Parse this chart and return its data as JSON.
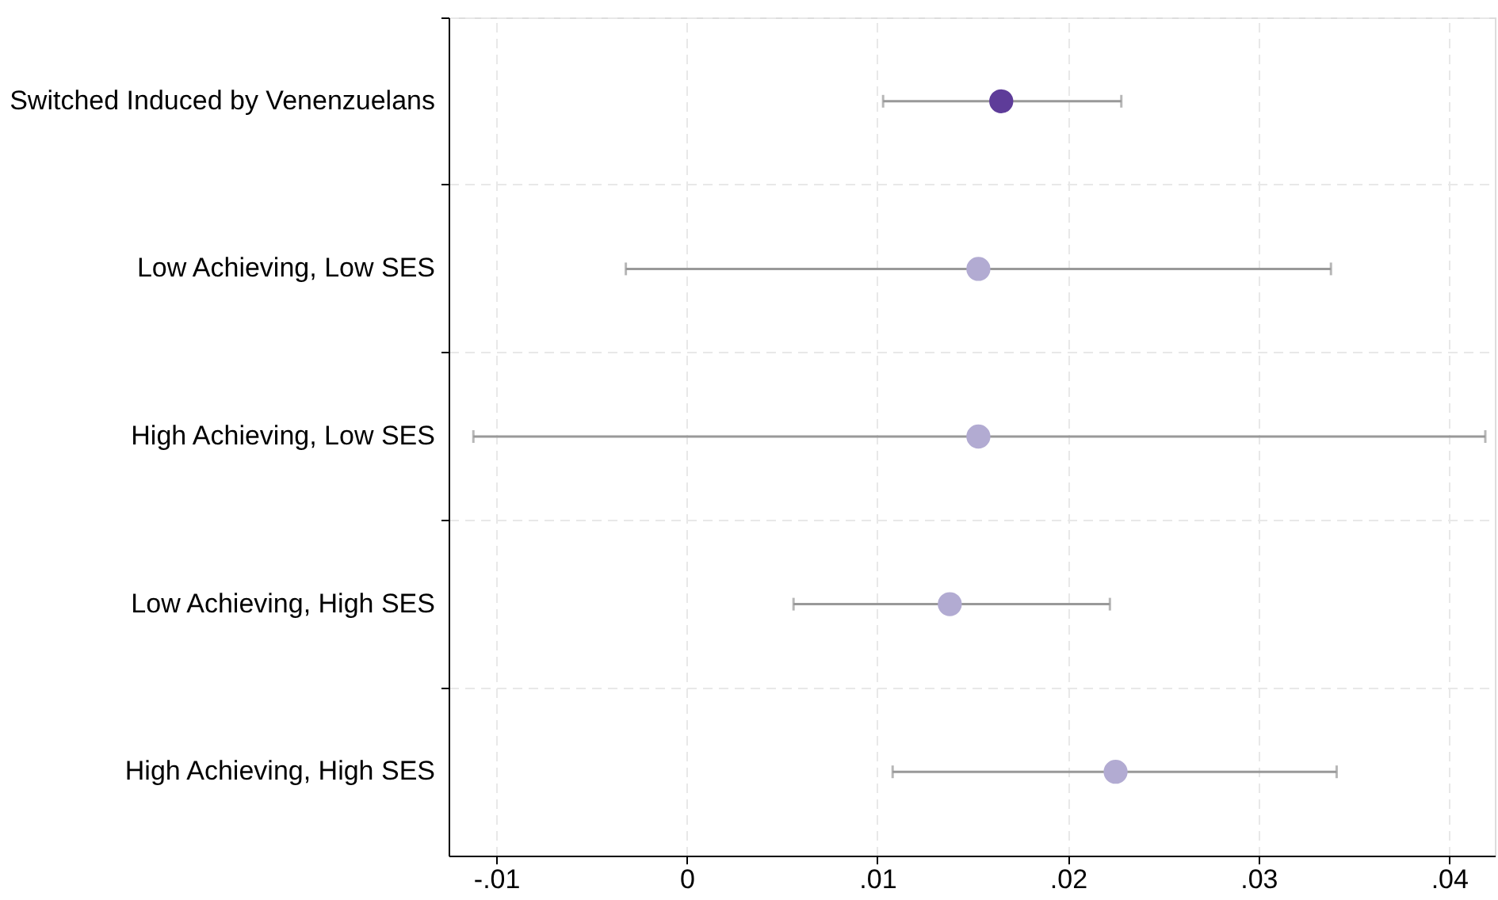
{
  "chart_data": {
    "type": "scatter",
    "orientation": "horizontal",
    "categories": [
      "Switched Induced by Venenzuelans",
      "Low Achieving, Low SES",
      "High Achieving, Low SES",
      "Low Achieving, High SES",
      "High Achieving, High SES"
    ],
    "values": [
      0.0165,
      0.0153,
      0.0153,
      0.0138,
      0.0225
    ],
    "errors": [
      [
        0.0103,
        0.0228
      ],
      [
        -0.0032,
        0.0338
      ],
      [
        -0.0112,
        0.0419
      ],
      [
        0.0056,
        0.0222
      ],
      [
        0.0108,
        0.0341
      ]
    ],
    "colors": [
      "#5e3c99",
      "#b2abd2",
      "#b2abd2",
      "#b2abd2",
      "#b2abd2"
    ],
    "xlim": [
      -0.0125,
      0.0424
    ],
    "xticks": [
      {
        "value": -0.01,
        "label": "-.01"
      },
      0,
      {
        "value": 0.01,
        "label": ".01"
      },
      {
        "value": 0.02,
        "label": ".02"
      },
      {
        "value": 0.03,
        "label": ".03"
      },
      {
        "value": 0.04,
        "label": ".04"
      }
    ],
    "grid": true,
    "marker": "circle"
  }
}
